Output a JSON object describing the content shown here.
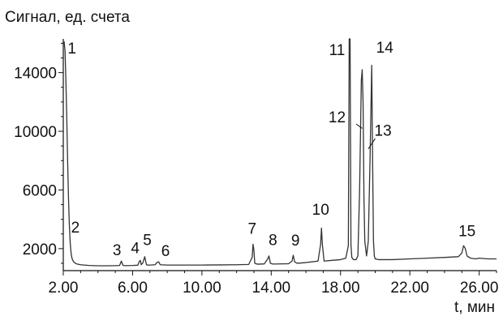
{
  "chart_data": {
    "type": "line",
    "ylabel": "Сигнал, ед. счета",
    "xlabel": "t, мин",
    "xlim": [
      2.0,
      27.0
    ],
    "ylim": [
      500,
      16300
    ],
    "x_ticks": [
      {
        "value": 2.0,
        "label": "2.00"
      },
      {
        "value": 6.0,
        "label": "6.00"
      },
      {
        "value": 10.0,
        "label": "10.00"
      },
      {
        "value": 14.0,
        "label": "14.00"
      },
      {
        "value": 18.0,
        "label": "18.00"
      },
      {
        "value": 22.0,
        "label": "22.00"
      },
      {
        "value": 26.0,
        "label": "26.00"
      }
    ],
    "y_ticks": [
      {
        "value": 2000,
        "label": "2000"
      },
      {
        "value": 6000,
        "label": "6000"
      },
      {
        "value": 10000,
        "label": "10000"
      },
      {
        "value": 14000,
        "label": "14000"
      }
    ],
    "grid": false,
    "line_color": "#333333",
    "series": [
      {
        "x": [
          2.0,
          2.05,
          2.1,
          2.15,
          2.2,
          2.25,
          2.3,
          2.35,
          2.4,
          2.45,
          2.5,
          2.55,
          2.6,
          2.7,
          2.8,
          3.0,
          3.2,
          3.5,
          4.0,
          4.5,
          5.0,
          5.25,
          5.35,
          5.45,
          5.6,
          6.0,
          6.3,
          6.4,
          6.45,
          6.5,
          6.6,
          6.7,
          6.8,
          6.9,
          7.0,
          7.3,
          7.4,
          7.5,
          7.6,
          8.0,
          9.0,
          10.0,
          11.0,
          12.0,
          12.7,
          12.9,
          12.95,
          13.0,
          13.05,
          13.2,
          13.6,
          13.8,
          13.87,
          13.95,
          14.1,
          15.0,
          15.2,
          15.27,
          15.35,
          15.5,
          16.0,
          16.7,
          16.85,
          16.9,
          16.95,
          17.05,
          17.5,
          18.0,
          18.3,
          18.45,
          18.5,
          18.55,
          18.6,
          18.65,
          18.75,
          18.9,
          19.0,
          19.1,
          19.2,
          19.25,
          19.3,
          19.35,
          19.4,
          19.5,
          19.6,
          19.7,
          19.8,
          19.85,
          19.9,
          19.95,
          20.0,
          20.2,
          21.0,
          22.0,
          23.0,
          24.0,
          24.8,
          25.0,
          25.1,
          25.2,
          25.3,
          25.5,
          25.8,
          26.0,
          26.5,
          27.0
        ],
        "y": [
          16000,
          16100,
          15500,
          13500,
          11000,
          8000,
          5500,
          3600,
          2400,
          1700,
          1350,
          1200,
          1100,
          1000,
          950,
          900,
          880,
          850,
          830,
          830,
          840,
          850,
          1150,
          850,
          840,
          850,
          870,
          1150,
          1200,
          900,
          1050,
          1450,
          900,
          870,
          880,
          900,
          1050,
          1100,
          900,
          880,
          880,
          880,
          890,
          900,
          920,
          1400,
          2300,
          1900,
          1000,
          940,
          960,
          1300,
          1500,
          1000,
          950,
          970,
          1150,
          1550,
          1100,
          1000,
          1050,
          1150,
          2300,
          3400,
          2300,
          1150,
          1200,
          1250,
          1350,
          2200,
          16300,
          16300,
          2300,
          1400,
          1250,
          1250,
          1500,
          6000,
          13500,
          14200,
          12000,
          5500,
          2500,
          1500,
          2500,
          8000,
          14500,
          8000,
          2500,
          1500,
          1300,
          1250,
          1250,
          1300,
          1350,
          1400,
          1450,
          1700,
          2200,
          2000,
          1500,
          1350,
          1300,
          1350,
          1300,
          1300
        ]
      }
    ],
    "peak_labels": [
      {
        "label": "1",
        "x": 2.5,
        "y": 15300
      },
      {
        "label": "2",
        "x": 2.7,
        "y": 3100
      },
      {
        "label": "3",
        "x": 5.1,
        "y": 1550
      },
      {
        "label": "4",
        "x": 6.15,
        "y": 1700
      },
      {
        "label": "5",
        "x": 6.85,
        "y": 2250
      },
      {
        "label": "6",
        "x": 7.9,
        "y": 1500
      },
      {
        "label": "7",
        "x": 12.9,
        "y": 3000
      },
      {
        "label": "8",
        "x": 14.1,
        "y": 2250
      },
      {
        "label": "9",
        "x": 15.4,
        "y": 2200
      },
      {
        "label": "10",
        "x": 16.85,
        "y": 4300
      },
      {
        "label": "11",
        "x": 17.8,
        "y": 15200
      },
      {
        "label": "12",
        "x": 17.8,
        "y": 10600
      },
      {
        "label": "13",
        "x": 20.45,
        "y": 9700
      },
      {
        "label": "14",
        "x": 20.55,
        "y": 15350
      },
      {
        "label": "15",
        "x": 25.3,
        "y": 2850
      }
    ],
    "peak_leaders": [
      {
        "from_x": 18.9,
        "from_y": 10500,
        "to_x": 19.25,
        "to_y": 10200
      },
      {
        "from_x": 20.0,
        "from_y": 9500,
        "to_x": 19.6,
        "to_y": 8800
      }
    ]
  }
}
